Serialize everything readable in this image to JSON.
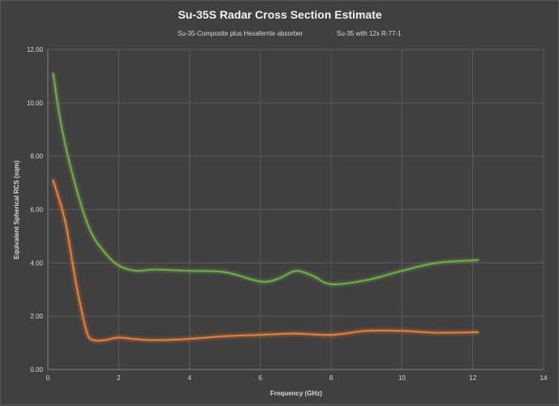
{
  "chart_data": {
    "type": "line",
    "title": "Su-35S Radar Cross Section Estimate",
    "xlabel": "Frequency (GHz)",
    "ylabel": "Equivalent Spherical RCS (sqm)",
    "xlim": [
      0,
      14
    ],
    "ylim": [
      0,
      12
    ],
    "x_ticks": [
      "0",
      "2",
      "4",
      "6",
      "8",
      "10",
      "12",
      "14"
    ],
    "y_ticks": [
      "0.00",
      "2.00",
      "4.00",
      "6.00",
      "8.00",
      "10.00",
      "12.00"
    ],
    "grid": true,
    "legend_position": "top",
    "smooth": true,
    "series": [
      {
        "name": "Su-35-Composite plus Hexaferrite absorber",
        "color": "#ed7d31",
        "x": [
          0.15,
          0.5,
          0.8,
          1.1,
          1.3,
          1.6,
          2.0,
          2.4,
          3.0,
          4.0,
          5.0,
          6.0,
          7.0,
          8.0,
          9.0,
          10.0,
          11.0,
          12.15
        ],
        "y": [
          7.1,
          5.5,
          3.2,
          1.4,
          1.1,
          1.1,
          1.2,
          1.15,
          1.1,
          1.15,
          1.25,
          1.3,
          1.35,
          1.3,
          1.45,
          1.45,
          1.38,
          1.4
        ]
      },
      {
        "name": "Su-35 with 12x R-77-1",
        "color": "#70ad47",
        "x": [
          0.15,
          0.4,
          0.8,
          1.2,
          1.6,
          2.0,
          2.5,
          3.0,
          4.0,
          5.0,
          6.0,
          6.5,
          7.0,
          7.5,
          8.0,
          9.0,
          10.0,
          11.0,
          12.15
        ],
        "y": [
          11.1,
          9.0,
          6.8,
          5.2,
          4.4,
          3.9,
          3.7,
          3.75,
          3.7,
          3.65,
          3.3,
          3.4,
          3.7,
          3.5,
          3.2,
          3.35,
          3.7,
          4.0,
          4.1
        ]
      }
    ]
  }
}
